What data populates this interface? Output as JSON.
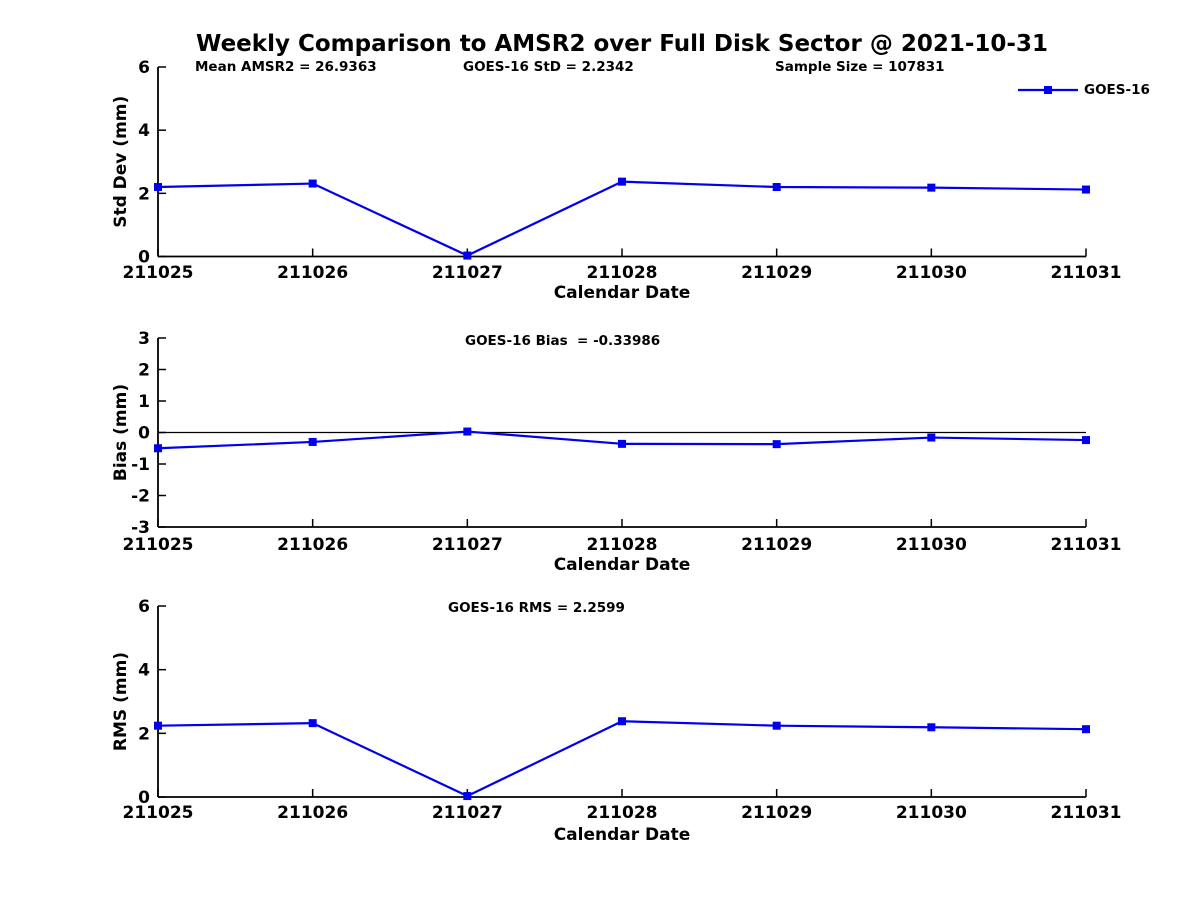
{
  "header": {
    "title": "Weekly Comparison to AMSR2 over Full Disk Sector @ 2021-10-31",
    "annotations": [
      "Mean AMSR2 = 26.9363",
      "GOES-16 StD = 2.2342",
      "Sample Size = 107831"
    ]
  },
  "legend": {
    "label": "GOES-16",
    "color": "#0000EE",
    "marker": "square"
  },
  "chart_data": [
    {
      "type": "line",
      "name": "std-dev",
      "title": "",
      "annotation": null,
      "xlabel": "Calendar Date",
      "ylabel": "Std Dev (mm)",
      "ylim": [
        0,
        6
      ],
      "yticks": [
        0,
        2,
        4,
        6
      ],
      "categories": [
        "211025",
        "211026",
        "211027",
        "211028",
        "211029",
        "211030",
        "211031"
      ],
      "grid": false,
      "zero_line": false,
      "legend_position": "top-right-outside",
      "series": [
        {
          "name": "GOES-16",
          "color": "#0000EE",
          "marker": "square",
          "values": [
            2.2,
            2.31,
            0.03,
            2.37,
            2.2,
            2.18,
            2.12
          ]
        }
      ]
    },
    {
      "type": "line",
      "name": "bias",
      "title": "",
      "annotation": "GOES-16 Bias  = -0.33986",
      "xlabel": "Calendar Date",
      "ylabel": "Bias (mm)",
      "ylim": [
        -3,
        3
      ],
      "yticks": [
        3,
        2,
        1,
        0,
        -1,
        -2,
        -3
      ],
      "categories": [
        "211025",
        "211026",
        "211027",
        "211028",
        "211029",
        "211030",
        "211031"
      ],
      "grid": false,
      "zero_line": true,
      "legend_position": "none",
      "series": [
        {
          "name": "GOES-16",
          "color": "#0000EE",
          "marker": "square",
          "values": [
            -0.5,
            -0.3,
            0.03,
            -0.36,
            -0.37,
            -0.16,
            -0.24
          ]
        }
      ]
    },
    {
      "type": "line",
      "name": "rms",
      "title": "",
      "annotation": "GOES-16 RMS = 2.2599",
      "xlabel": "Calendar Date",
      "ylabel": "RMS (mm)",
      "ylim": [
        0,
        6
      ],
      "yticks": [
        0,
        2,
        4,
        6
      ],
      "categories": [
        "211025",
        "211026",
        "211027",
        "211028",
        "211029",
        "211030",
        "211031"
      ],
      "grid": false,
      "zero_line": false,
      "legend_position": "none",
      "series": [
        {
          "name": "GOES-16",
          "color": "#0000EE",
          "marker": "square",
          "values": [
            2.24,
            2.32,
            0.03,
            2.38,
            2.24,
            2.19,
            2.13
          ]
        }
      ]
    }
  ]
}
